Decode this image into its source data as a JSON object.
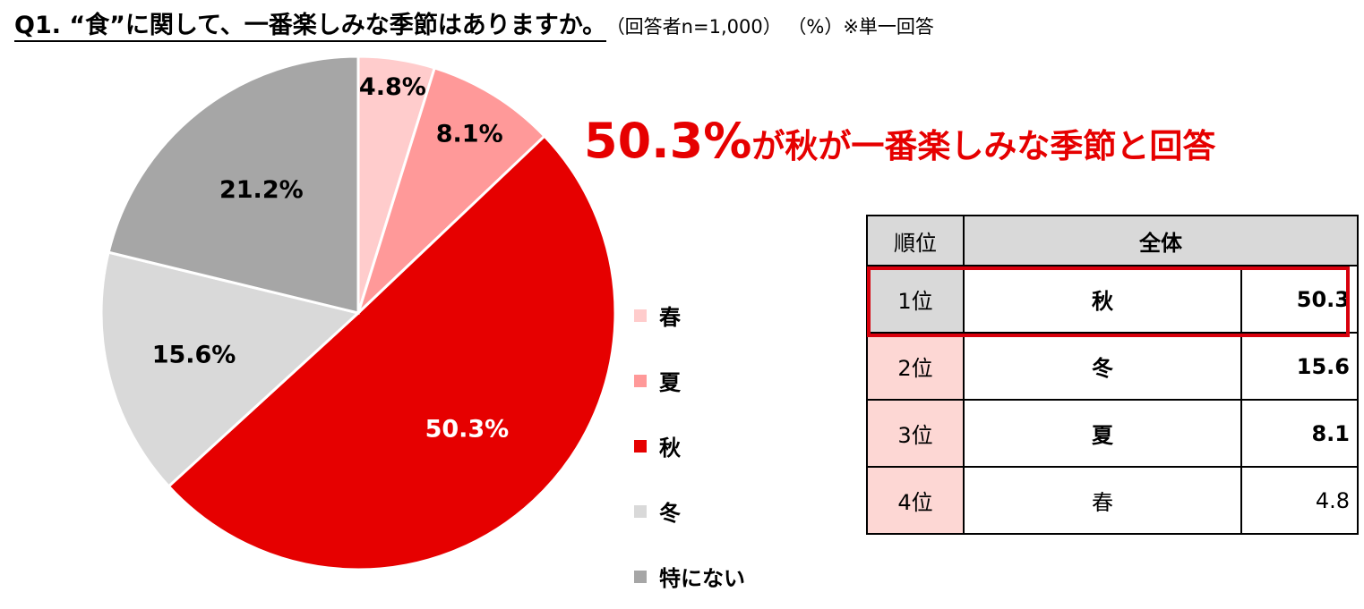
{
  "title": {
    "question": "Q1. “食”に関して、一番楽しみな季節はありますか。",
    "note": "（回答者n=1,000） （%）※単一回答"
  },
  "headline": {
    "value": "50.3%",
    "text": "が秋が一番楽しみな季節と回答",
    "color": "#e60000"
  },
  "chart_data": {
    "type": "pie",
    "start_angle_deg": 0,
    "direction": "clockwise",
    "slices": [
      {
        "label": "春",
        "value": 4.8,
        "display": "4.8%",
        "color": "#ffcccc",
        "label_color": "#000000"
      },
      {
        "label": "夏",
        "value": 8.1,
        "display": "8.1%",
        "color": "#ff9999",
        "label_color": "#000000"
      },
      {
        "label": "秋",
        "value": 50.3,
        "display": "50.3%",
        "color": "#e60000",
        "label_color": "#ffffff"
      },
      {
        "label": "冬",
        "value": 15.6,
        "display": "15.6%",
        "color": "#d9d9d9",
        "label_color": "#000000"
      },
      {
        "label": "特にない",
        "value": 21.2,
        "display": "21.2%",
        "color": "#a6a6a6",
        "label_color": "#000000"
      }
    ],
    "legend_position": "right"
  },
  "table": {
    "headers": {
      "rank": "順位",
      "overall": "全体"
    },
    "rows": [
      {
        "rank": "1位",
        "season": "秋",
        "value": "50.3",
        "bold": true
      },
      {
        "rank": "2位",
        "season": "冬",
        "value": "15.6",
        "bold": true
      },
      {
        "rank": "3位",
        "season": "夏",
        "value": "8.1",
        "bold": true
      },
      {
        "rank": "4位",
        "season": "春",
        "value": "4.8",
        "bold": false
      }
    ],
    "highlight_color": "#d8000c"
  }
}
